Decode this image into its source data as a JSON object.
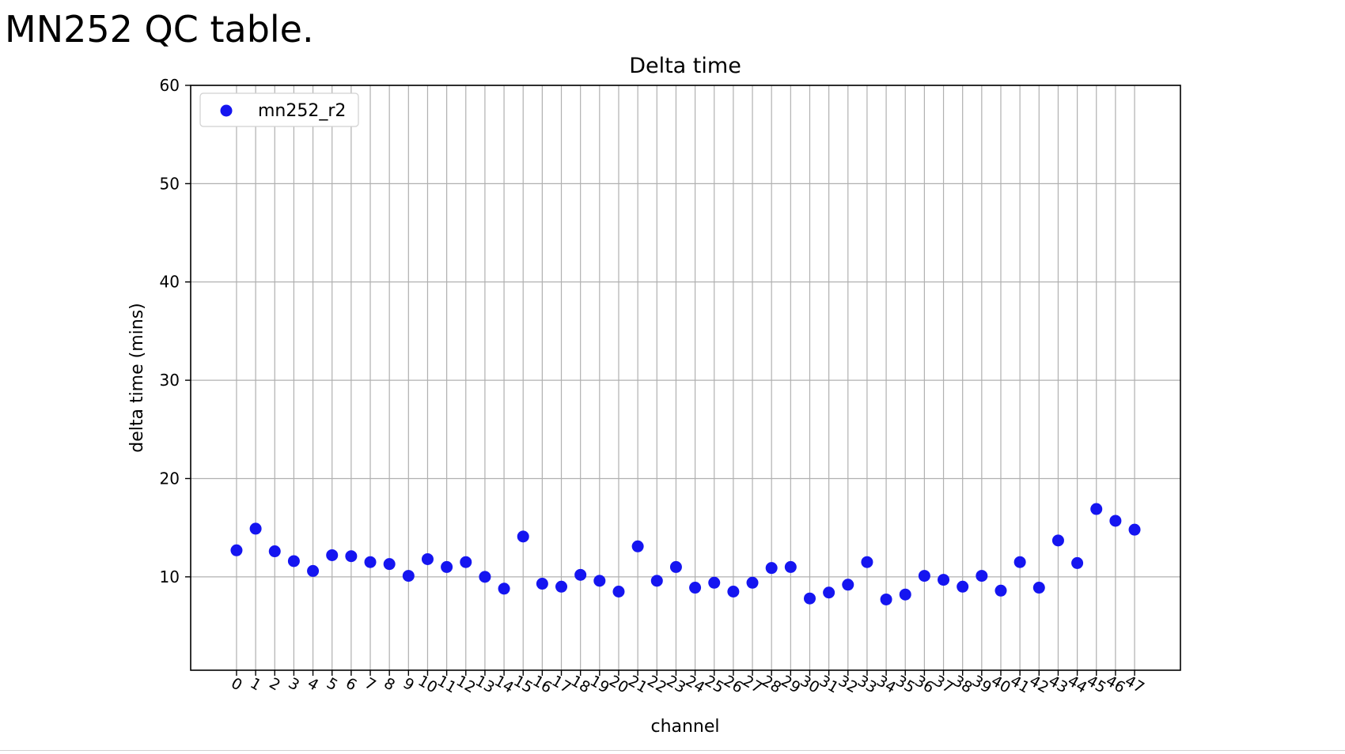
{
  "slide": {
    "title": "MN252 QC table."
  },
  "chart_data": {
    "type": "scatter",
    "title": "Delta time",
    "xlabel": "channel",
    "ylabel": "delta time (mins)",
    "ylim": [
      0.5,
      60
    ],
    "xlim": [
      -2.4,
      49.4
    ],
    "yticks": [
      10,
      20,
      30,
      40,
      50,
      60
    ],
    "x": [
      0,
      1,
      2,
      3,
      4,
      5,
      6,
      7,
      8,
      9,
      10,
      11,
      12,
      13,
      14,
      15,
      16,
      17,
      18,
      19,
      20,
      21,
      22,
      23,
      24,
      25,
      26,
      27,
      28,
      29,
      30,
      31,
      32,
      33,
      34,
      35,
      36,
      37,
      38,
      39,
      40,
      41,
      42,
      43,
      44,
      45,
      46,
      47
    ],
    "series": [
      {
        "name": "mn252_r2",
        "color": "#1515f0",
        "values": [
          12.7,
          14.9,
          12.6,
          11.6,
          10.6,
          12.2,
          12.1,
          11.5,
          11.3,
          10.1,
          11.8,
          11.0,
          11.5,
          10.0,
          8.8,
          14.1,
          9.3,
          9.0,
          10.2,
          9.6,
          8.5,
          13.1,
          9.6,
          11.0,
          8.9,
          9.4,
          8.5,
          9.4,
          10.9,
          11.0,
          7.8,
          8.4,
          9.2,
          11.5,
          7.7,
          8.2,
          10.1,
          9.7,
          9.0,
          10.1,
          8.6,
          11.5,
          8.9,
          13.7,
          11.4,
          16.9,
          15.7,
          14.8
        ]
      }
    ],
    "grid": true,
    "legend": "top-left"
  }
}
